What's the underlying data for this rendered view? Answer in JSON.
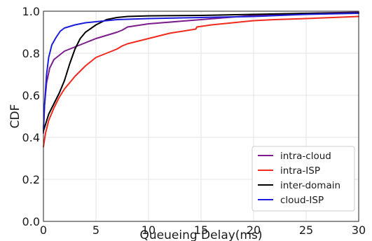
{
  "chart_data": {
    "type": "line",
    "title": "",
    "xlabel": "Queueing Delay(ms)",
    "ylabel": "CDF",
    "xlim": [
      0,
      30
    ],
    "ylim": [
      0,
      1.0
    ],
    "x_ticks": [
      "0",
      "5",
      "10",
      "15",
      "20",
      "25",
      "30"
    ],
    "y_ticks": [
      "0.0",
      "0.2",
      "0.4",
      "0.6",
      "0.8",
      "1.0"
    ],
    "x_tick_values": [
      0,
      5,
      10,
      15,
      20,
      25,
      30
    ],
    "y_tick_values": [
      0,
      0.2,
      0.4,
      0.6,
      0.8,
      1.0
    ],
    "grid": true,
    "legend_position": "bottom-right",
    "series": [
      {
        "name": "intra-cloud",
        "color": "#7b1e8c",
        "x": [
          0,
          0.1,
          0.3,
          0.6,
          1.0,
          1.5,
          2.0,
          3.0,
          4.0,
          5.0,
          6.0,
          7.0,
          7.5,
          8.0,
          10.0,
          15.0,
          20.0,
          25.0,
          30.0
        ],
        "y": [
          0.42,
          0.55,
          0.66,
          0.73,
          0.77,
          0.79,
          0.81,
          0.83,
          0.85,
          0.87,
          0.885,
          0.9,
          0.91,
          0.925,
          0.94,
          0.96,
          0.98,
          0.99,
          0.995
        ]
      },
      {
        "name": "intra-ISP",
        "color": "#f22a1e",
        "x": [
          0,
          0.2,
          0.5,
          1.0,
          1.5,
          2.0,
          3.0,
          4.0,
          5.0,
          6.0,
          7.0,
          7.5,
          8.0,
          10.0,
          12.0,
          14.5,
          14.6,
          16.0,
          18.0,
          20.0,
          22.0,
          25.0,
          30.0
        ],
        "y": [
          0.355,
          0.42,
          0.48,
          0.54,
          0.59,
          0.63,
          0.69,
          0.74,
          0.78,
          0.8,
          0.82,
          0.835,
          0.845,
          0.87,
          0.895,
          0.915,
          0.925,
          0.935,
          0.945,
          0.955,
          0.96,
          0.965,
          0.975
        ]
      },
      {
        "name": "inter-domain",
        "color": "#000000",
        "x": [
          0,
          0.5,
          1.0,
          1.5,
          2.0,
          2.5,
          3.0,
          3.5,
          4.0,
          5.0,
          6.0,
          7.0,
          8.0,
          10.0,
          15.0,
          20.0,
          25.0,
          30.0
        ],
        "y": [
          0.43,
          0.51,
          0.56,
          0.61,
          0.67,
          0.75,
          0.82,
          0.87,
          0.9,
          0.935,
          0.96,
          0.97,
          0.975,
          0.978,
          0.98,
          0.985,
          0.99,
          0.992
        ]
      },
      {
        "name": "cloud-ISP",
        "color": "#1c1cdd",
        "x": [
          0,
          0.1,
          0.3,
          0.5,
          0.8,
          1.2,
          1.6,
          2.0,
          3.0,
          4.0,
          5.0,
          6.0,
          7.0,
          10.0,
          15.0,
          20.0,
          25.0,
          30.0
        ],
        "y": [
          0.44,
          0.55,
          0.7,
          0.78,
          0.84,
          0.875,
          0.905,
          0.92,
          0.935,
          0.945,
          0.95,
          0.955,
          0.96,
          0.965,
          0.97,
          0.975,
          0.985,
          0.99
        ]
      }
    ]
  }
}
